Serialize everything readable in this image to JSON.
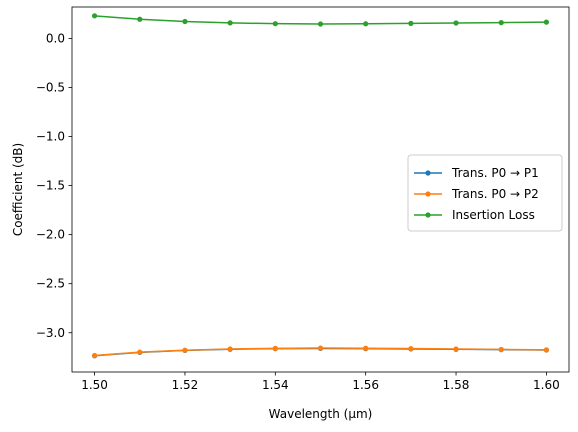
{
  "chart_data": {
    "type": "line",
    "xlabel": "Wavelength (μm)",
    "ylabel": "Coefficient (dB)",
    "xlim": [
      1.495,
      1.605
    ],
    "ylim": [
      -3.4,
      0.32
    ],
    "x_ticks": [
      "1.50",
      "1.52",
      "1.54",
      "1.56",
      "1.58",
      "1.60"
    ],
    "y_ticks": [
      "0.0",
      "−0.5",
      "−1.0",
      "−1.5",
      "−2.0",
      "−2.5",
      "−3.0"
    ],
    "x": [
      1.5,
      1.51,
      1.52,
      1.53,
      1.54,
      1.55,
      1.56,
      1.57,
      1.58,
      1.59,
      1.6
    ],
    "series": [
      {
        "name": "Trans. P0 → P1",
        "color": "#1f77b4",
        "values": [
          -3.235,
          -3.2,
          -3.18,
          -3.168,
          -3.162,
          -3.16,
          -3.162,
          -3.165,
          -3.168,
          -3.172,
          -3.176
        ]
      },
      {
        "name": "Trans. P0 → P2",
        "color": "#ff7f0e",
        "values": [
          -3.232,
          -3.198,
          -3.178,
          -3.165,
          -3.159,
          -3.156,
          -3.158,
          -3.161,
          -3.165,
          -3.17,
          -3.175
        ]
      },
      {
        "name": "Insertion Loss",
        "color": "#2ca02c",
        "values": [
          0.23,
          0.195,
          0.172,
          0.158,
          0.15,
          0.147,
          0.149,
          0.153,
          0.157,
          0.161,
          0.166
        ]
      }
    ],
    "legend_position": "center-right",
    "grid": false
  }
}
